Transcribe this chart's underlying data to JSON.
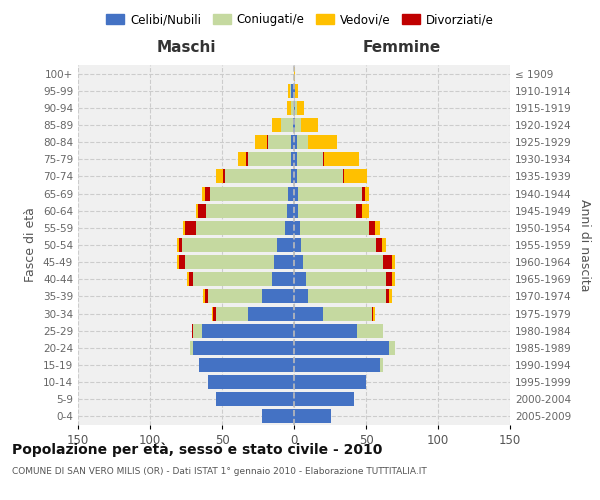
{
  "age_groups": [
    "0-4",
    "5-9",
    "10-14",
    "15-19",
    "20-24",
    "25-29",
    "30-34",
    "35-39",
    "40-44",
    "45-49",
    "50-54",
    "55-59",
    "60-64",
    "65-69",
    "70-74",
    "75-79",
    "80-84",
    "85-89",
    "90-94",
    "95-99",
    "100+"
  ],
  "birth_years": [
    "2005-2009",
    "2000-2004",
    "1995-1999",
    "1990-1994",
    "1985-1989",
    "1980-1984",
    "1975-1979",
    "1970-1974",
    "1965-1969",
    "1960-1964",
    "1955-1959",
    "1950-1954",
    "1945-1949",
    "1940-1944",
    "1935-1939",
    "1930-1934",
    "1925-1929",
    "1920-1924",
    "1915-1919",
    "1910-1914",
    "≤ 1909"
  ],
  "males": {
    "celibi": [
      22,
      54,
      60,
      66,
      70,
      64,
      32,
      22,
      15,
      14,
      12,
      6,
      5,
      4,
      2,
      2,
      2,
      1,
      0,
      2,
      0
    ],
    "coniugati": [
      0,
      0,
      0,
      0,
      2,
      6,
      22,
      38,
      55,
      62,
      66,
      62,
      56,
      54,
      46,
      30,
      16,
      8,
      2,
      1,
      0
    ],
    "vedovi": [
      0,
      0,
      0,
      0,
      0,
      0,
      1,
      1,
      1,
      1,
      1,
      1,
      1,
      2,
      5,
      6,
      8,
      6,
      3,
      1,
      0
    ],
    "divorziati": [
      0,
      0,
      0,
      0,
      0,
      1,
      2,
      2,
      3,
      4,
      2,
      8,
      6,
      4,
      1,
      1,
      1,
      0,
      0,
      0,
      0
    ]
  },
  "females": {
    "nubili": [
      26,
      42,
      50,
      60,
      66,
      44,
      20,
      10,
      8,
      6,
      5,
      4,
      3,
      3,
      2,
      2,
      2,
      1,
      1,
      1,
      0
    ],
    "coniugate": [
      0,
      0,
      0,
      2,
      4,
      18,
      34,
      54,
      56,
      56,
      52,
      48,
      40,
      44,
      32,
      18,
      8,
      4,
      1,
      0,
      0
    ],
    "vedove": [
      0,
      0,
      0,
      0,
      0,
      0,
      1,
      2,
      2,
      2,
      3,
      4,
      5,
      3,
      16,
      24,
      20,
      12,
      5,
      2,
      1
    ],
    "divorziate": [
      0,
      0,
      0,
      0,
      0,
      0,
      1,
      2,
      4,
      6,
      4,
      4,
      4,
      2,
      1,
      1,
      0,
      0,
      0,
      0,
      0
    ]
  },
  "color_celibi": "#4472c4",
  "color_coniugati": "#c5d9a0",
  "color_vedovi": "#ffc000",
  "color_divorziati": "#c00000",
  "title": "Popolazione per età, sesso e stato civile - 2010",
  "subtitle": "COMUNE DI SAN VERO MILIS (OR) - Dati ISTAT 1° gennaio 2010 - Elaborazione TUTTITALIA.IT",
  "label_maschi": "Maschi",
  "label_femmine": "Femmine",
  "ylabel_left": "Fasce di età",
  "ylabel_right": "Anni di nascita",
  "xlim": 150,
  "bg_color": "#ffffff",
  "plot_bg": "#f0f0f0",
  "grid_color": "#cccccc"
}
